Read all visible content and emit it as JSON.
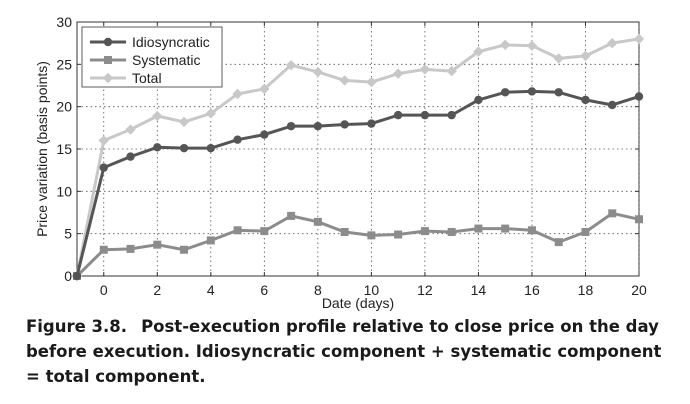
{
  "chart_data": {
    "type": "line",
    "title": "",
    "xlabel": "Date (days)",
    "ylabel": "Price variation (basis points)",
    "xlim": [
      -1,
      20
    ],
    "ylim": [
      0,
      30
    ],
    "x_ticks": [
      0,
      2,
      4,
      6,
      8,
      10,
      12,
      14,
      16,
      18,
      20
    ],
    "y_ticks": [
      0,
      5,
      10,
      15,
      20,
      25,
      30
    ],
    "grid": true,
    "legend_position": "top-left",
    "x": [
      -1,
      0,
      1,
      2,
      3,
      4,
      5,
      6,
      7,
      8,
      9,
      10,
      11,
      12,
      13,
      14,
      15,
      16,
      17,
      18,
      19,
      20
    ],
    "series": [
      {
        "name": "Idiosyncratic",
        "color": "#555555",
        "marker": "circle",
        "values": [
          0,
          12.8,
          14.1,
          15.2,
          15.1,
          15.1,
          16.1,
          16.7,
          17.7,
          17.7,
          17.9,
          18.0,
          19.0,
          19.0,
          19.0,
          20.8,
          21.7,
          21.8,
          21.7,
          20.8,
          20.2,
          21.2
        ]
      },
      {
        "name": "Systematic",
        "color": "#8c8c8c",
        "marker": "square",
        "values": [
          0,
          3.1,
          3.2,
          3.7,
          3.1,
          4.2,
          5.4,
          5.3,
          7.1,
          6.4,
          5.2,
          4.8,
          4.9,
          5.3,
          5.2,
          5.6,
          5.6,
          5.4,
          4.0,
          5.2,
          7.4,
          6.7
        ]
      },
      {
        "name": "Total",
        "color": "#c8c8c8",
        "marker": "diamond",
        "values": [
          0,
          16.0,
          17.3,
          18.9,
          18.2,
          19.2,
          21.5,
          22.1,
          24.9,
          24.1,
          23.1,
          22.9,
          23.9,
          24.4,
          24.2,
          26.5,
          27.3,
          27.2,
          25.7,
          26.0,
          27.5,
          28.0
        ]
      }
    ]
  },
  "caption": {
    "number": "Figure 3.8.",
    "text": "Post-execution profile relative to close price on the day before execution. Idiosyncratic component + systematic component = total component."
  }
}
